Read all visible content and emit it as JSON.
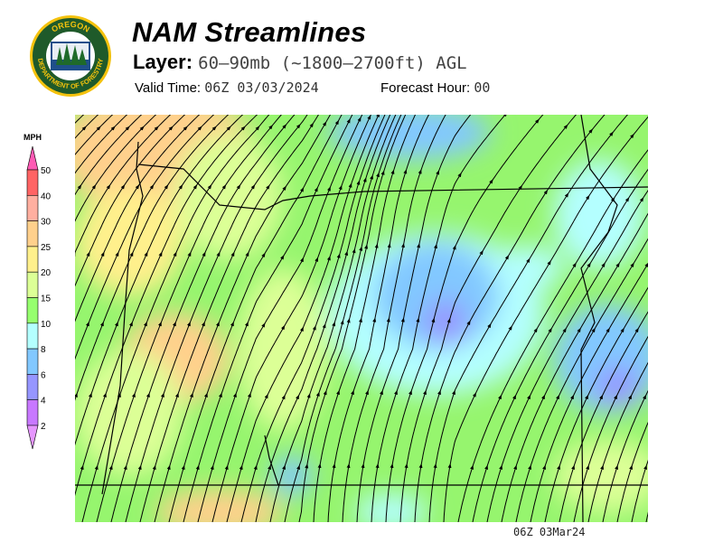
{
  "header": {
    "title": "NAM Streamlines",
    "layer_label": "Layer:",
    "layer_value": "60–90mb (~1800–2700ft) AGL",
    "valid_label": "Valid Time:",
    "valid_value": "06Z 03/03/2024",
    "forecast_label": "Forecast Hour:",
    "forecast_value": "00"
  },
  "logo": {
    "text_top": "OREGON",
    "text_bottom": "DEPARTMENT OF FORESTRY"
  },
  "legend": {
    "unit": "MPH",
    "ticks": [
      "50",
      "40",
      "30",
      "25",
      "20",
      "15",
      "10",
      "8",
      "6",
      "4",
      "2"
    ],
    "colors": [
      "#ff6464",
      "#ffafa0",
      "#ffd08c",
      "#fff08c",
      "#dcff96",
      "#96ff6e",
      "#b4ffff",
      "#82c8ff",
      "#9696ff",
      "#c878ff"
    ],
    "over_color": "#ff5ab4",
    "under_color": "#e696ff"
  },
  "map": {
    "streamline_color": "#000000",
    "base_color": "#96f56e"
  },
  "footer": {
    "stamp": "06Z 03Mar24"
  }
}
